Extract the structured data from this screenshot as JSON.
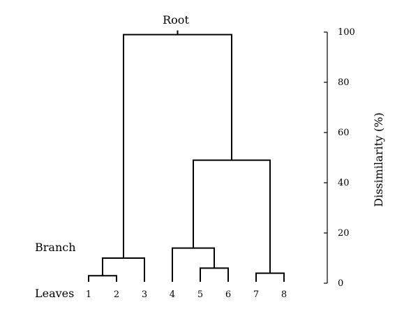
{
  "labels": {
    "root": "Root",
    "branch": "Branch",
    "leaves": "Leaves"
  },
  "leaves": [
    "1",
    "2",
    "3",
    "4",
    "5",
    "6",
    "7",
    "8"
  ],
  "axis": {
    "title": "Dissimilarity (%)",
    "min": 0,
    "max": 100,
    "ticks": [
      "0",
      "20",
      "40",
      "60",
      "80",
      "100"
    ]
  },
  "merges": [
    {
      "a": "1",
      "b": "2",
      "height": 3
    },
    {
      "a": "5",
      "b": "6",
      "height": 6
    },
    {
      "a": "7",
      "b": "8",
      "height": 4
    },
    {
      "a": "1-2",
      "b": "3",
      "height": 10
    },
    {
      "a": "4",
      "b": "5-6",
      "height": 14
    },
    {
      "a": "4-5-6",
      "b": "7-8",
      "height": 49
    },
    {
      "a": "1-2-3",
      "b": "4-5-6-7-8",
      "height": 99
    }
  ]
}
